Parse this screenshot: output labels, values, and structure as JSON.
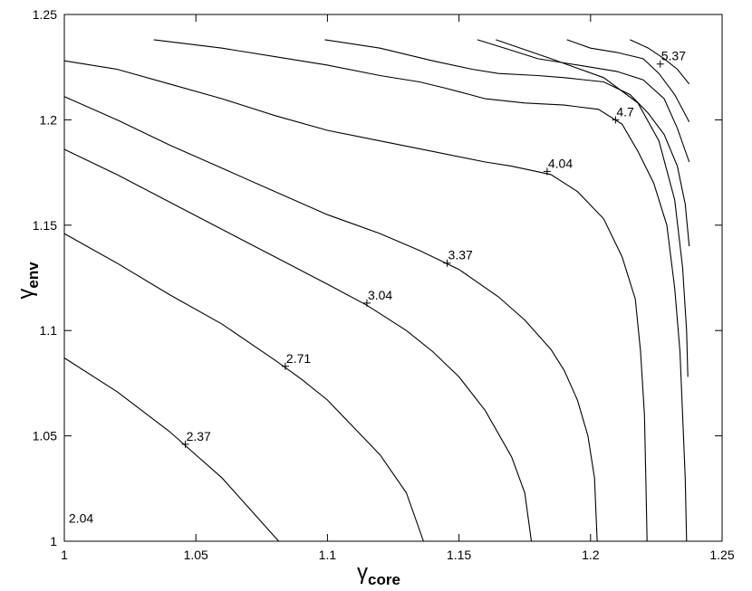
{
  "chart_data": {
    "type": "contour",
    "xlabel": {
      "symbol": "γ",
      "subscript": "core"
    },
    "ylabel": {
      "symbol": "γ",
      "subscript": "env"
    },
    "xlim": [
      1,
      1.25
    ],
    "ylim": [
      1,
      1.25
    ],
    "x_ticks": [
      "1",
      "1.05",
      "1.1",
      "1.15",
      "1.2",
      "1.25"
    ],
    "y_ticks": [
      "1",
      "1.05",
      "1.1",
      "1.15",
      "1.2",
      "1.25"
    ],
    "grid": false,
    "contours": [
      {
        "label": "2.04",
        "label_at": [
          1.001,
          1.008
        ],
        "marker": false,
        "points": []
      },
      {
        "label": "2.37",
        "label_at": [
          1.046,
          1.046
        ],
        "marker": true,
        "points": [
          [
            1,
            1.087
          ],
          [
            1.02,
            1.071
          ],
          [
            1.04,
            1.052
          ],
          [
            1.05,
            1.041
          ],
          [
            1.06,
            1.03
          ],
          [
            1.07,
            1.016
          ],
          [
            1.08,
            1.002
          ],
          [
            1.0815,
            1.0
          ]
        ]
      },
      {
        "label": "2.71",
        "label_at": [
          1.084,
          1.083
        ],
        "marker": true,
        "points": [
          [
            1,
            1.146
          ],
          [
            1.02,
            1.132
          ],
          [
            1.04,
            1.117
          ],
          [
            1.06,
            1.103
          ],
          [
            1.08,
            1.086
          ],
          [
            1.09,
            1.077
          ],
          [
            1.1,
            1.067
          ],
          [
            1.11,
            1.054
          ],
          [
            1.12,
            1.041
          ],
          [
            1.13,
            1.023
          ],
          [
            1.1365,
            1.0
          ]
        ]
      },
      {
        "label": "3.04",
        "label_at": [
          1.115,
          1.113
        ],
        "marker": true,
        "points": [
          [
            1,
            1.186
          ],
          [
            1.02,
            1.174
          ],
          [
            1.04,
            1.161
          ],
          [
            1.06,
            1.148
          ],
          [
            1.08,
            1.135
          ],
          [
            1.1,
            1.122
          ],
          [
            1.115,
            1.112
          ],
          [
            1.13,
            1.1
          ],
          [
            1.14,
            1.09
          ],
          [
            1.15,
            1.078
          ],
          [
            1.16,
            1.062
          ],
          [
            1.17,
            1.04
          ],
          [
            1.175,
            1.023
          ],
          [
            1.1775,
            1.0
          ]
        ]
      },
      {
        "label": "3.37",
        "label_at": [
          1.1455,
          1.132
        ],
        "marker": true,
        "points": [
          [
            1,
            1.211
          ],
          [
            1.02,
            1.2
          ],
          [
            1.04,
            1.188
          ],
          [
            1.06,
            1.177
          ],
          [
            1.08,
            1.166
          ],
          [
            1.1,
            1.155
          ],
          [
            1.12,
            1.146
          ],
          [
            1.135,
            1.138
          ],
          [
            1.15,
            1.129
          ],
          [
            1.165,
            1.116
          ],
          [
            1.175,
            1.105
          ],
          [
            1.185,
            1.091
          ],
          [
            1.19,
            1.081
          ],
          [
            1.195,
            1.067
          ],
          [
            1.199,
            1.05
          ],
          [
            1.2015,
            1.03
          ],
          [
            1.2025,
            1.0
          ]
        ]
      },
      {
        "label": "4.04",
        "label_at": [
          1.1835,
          1.1755
        ],
        "marker": true,
        "points": [
          [
            1,
            1.228
          ],
          [
            1.02,
            1.224
          ],
          [
            1.04,
            1.217
          ],
          [
            1.06,
            1.21
          ],
          [
            1.08,
            1.202
          ],
          [
            1.1,
            1.195
          ],
          [
            1.12,
            1.19
          ],
          [
            1.14,
            1.185
          ],
          [
            1.16,
            1.18
          ],
          [
            1.17,
            1.178
          ],
          [
            1.185,
            1.174
          ],
          [
            1.195,
            1.166
          ],
          [
            1.205,
            1.153
          ],
          [
            1.212,
            1.135
          ],
          [
            1.217,
            1.115
          ],
          [
            1.219,
            1.09
          ],
          [
            1.2205,
            1.06
          ],
          [
            1.221,
            1.03
          ],
          [
            1.2215,
            1.0
          ]
        ]
      },
      {
        "label": "4.7",
        "label_at": [
          1.2095,
          1.2
        ],
        "marker": true,
        "points": [
          [
            1.034,
            1.238
          ],
          [
            1.06,
            1.234
          ],
          [
            1.08,
            1.23
          ],
          [
            1.1,
            1.226
          ],
          [
            1.12,
            1.221
          ],
          [
            1.135,
            1.218
          ],
          [
            1.145,
            1.215
          ],
          [
            1.16,
            1.21
          ],
          [
            1.175,
            1.208
          ],
          [
            1.19,
            1.207
          ],
          [
            1.203,
            1.205
          ],
          [
            1.212,
            1.198
          ],
          [
            1.218,
            1.185
          ],
          [
            1.224,
            1.17
          ],
          [
            1.229,
            1.15
          ],
          [
            1.232,
            1.12
          ],
          [
            1.234,
            1.09
          ],
          [
            1.235,
            1.06
          ],
          [
            1.236,
            1.03
          ],
          [
            1.2365,
            1.0
          ]
        ]
      },
      {
        "label": "5.37",
        "label_at": [
          1.2265,
          1.2265
        ],
        "marker": true,
        "points": [
          [
            1.099,
            1.238
          ],
          [
            1.12,
            1.234
          ],
          [
            1.14,
            1.228
          ],
          [
            1.155,
            1.224
          ],
          [
            1.165,
            1.222
          ],
          [
            1.18,
            1.221
          ],
          [
            1.19,
            1.22
          ],
          [
            1.205,
            1.218
          ],
          [
            1.215,
            1.212
          ],
          [
            1.222,
            1.203
          ],
          [
            1.228,
            1.193
          ],
          [
            1.233,
            1.178
          ],
          [
            1.236,
            1.16
          ],
          [
            1.2375,
            1.14
          ]
        ]
      },
      {
        "label": "",
        "label_at": null,
        "marker": false,
        "points": [
          [
            1.157,
            1.238
          ],
          [
            1.17,
            1.233
          ],
          [
            1.18,
            1.229
          ],
          [
            1.19,
            1.227
          ],
          [
            1.2,
            1.225
          ],
          [
            1.21,
            1.223
          ],
          [
            1.22,
            1.219
          ],
          [
            1.228,
            1.21
          ],
          [
            1.233,
            1.196
          ],
          [
            1.2375,
            1.18
          ]
        ]
      },
      {
        "label": "",
        "label_at": null,
        "marker": false,
        "points": [
          [
            1.191,
            1.238
          ],
          [
            1.2,
            1.234
          ],
          [
            1.21,
            1.232
          ],
          [
            1.22,
            1.229
          ],
          [
            1.226,
            1.222
          ],
          [
            1.232,
            1.212
          ],
          [
            1.2375,
            1.199
          ]
        ]
      },
      {
        "label": "",
        "label_at": null,
        "marker": false,
        "points": [
          [
            1.215,
            1.238
          ],
          [
            1.222,
            1.234
          ],
          [
            1.228,
            1.229
          ],
          [
            1.233,
            1.224
          ],
          [
            1.2375,
            1.217
          ]
        ]
      },
      {
        "label": "",
        "label_at": null,
        "marker": false,
        "points": [
          [
            1.164,
            1.238
          ],
          [
            1.185,
            1.229
          ],
          [
            1.205,
            1.22
          ],
          [
            1.218,
            1.208
          ],
          [
            1.226,
            1.19
          ],
          [
            1.232,
            1.162
          ],
          [
            1.235,
            1.13
          ],
          [
            1.2365,
            1.1
          ],
          [
            1.237,
            1.078
          ]
        ]
      }
    ]
  }
}
